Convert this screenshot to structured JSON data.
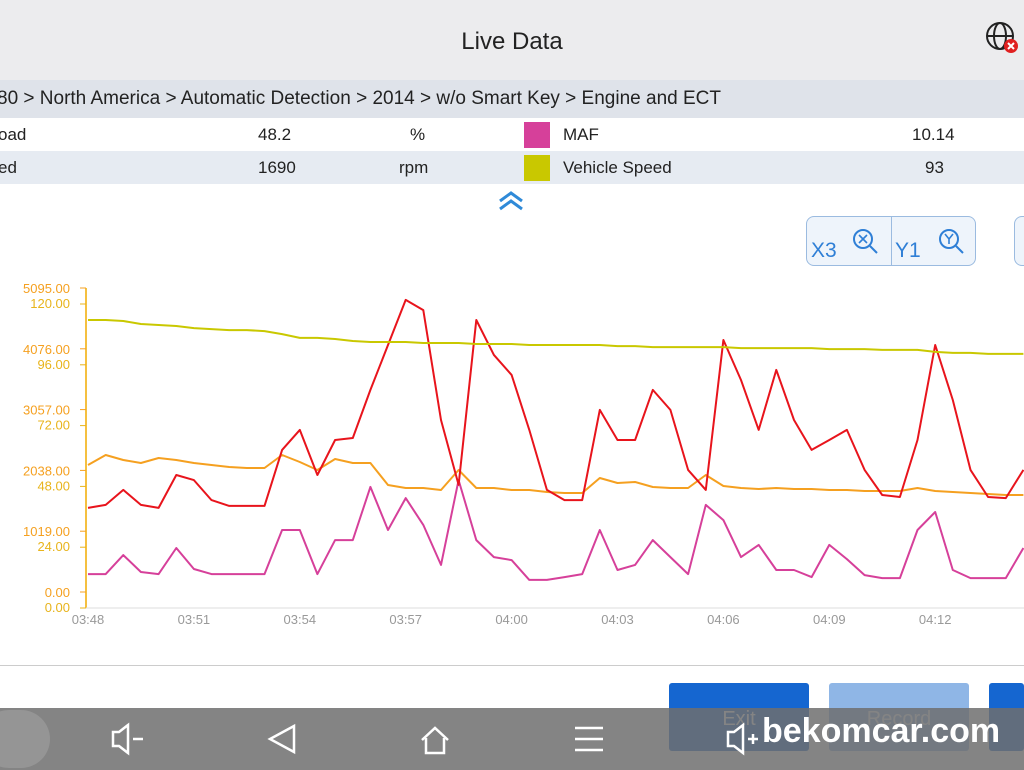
{
  "header": {
    "title": "Live Data"
  },
  "breadcrumb": "80 > North America  > Automatic Detection  > 2014  > w/o Smart Key  > Engine and ECT",
  "table": {
    "rows": [
      {
        "left_name": "oad",
        "left_value": 48.2,
        "left_unit": "%",
        "right_color": "#d6409a",
        "right_name": "MAF",
        "right_value": 10.14
      },
      {
        "left_name": "ed",
        "left_value": 1690,
        "left_unit": "rpm",
        "right_color": "#c9c800",
        "right_name": "Vehicle Speed",
        "right_value": 93
      }
    ]
  },
  "zoom": {
    "x": "X3",
    "y": "Y1"
  },
  "buttons": [
    "Exit",
    "Record"
  ],
  "watermark": "bekomcar.com",
  "chart_data": {
    "type": "line",
    "categories": [
      "03:48",
      null,
      null,
      null,
      null,
      null,
      "03:51",
      null,
      null,
      null,
      null,
      null,
      "03:54",
      null,
      null,
      null,
      null,
      null,
      "03:57",
      null,
      null,
      null,
      null,
      null,
      "04:00",
      null,
      null,
      null,
      null,
      null,
      "04:03",
      null,
      null,
      null,
      null,
      null,
      "04:06",
      null,
      null,
      null,
      null,
      null,
      "04:09",
      null,
      null,
      null,
      null,
      null,
      "04:12",
      null,
      null,
      null,
      null,
      null
    ],
    "ylim": [
      0,
      120
    ],
    "yticks": [
      {
        "value": 0,
        "label": "0.00"
      },
      {
        "value": 24,
        "label": "24.00"
      },
      {
        "value": 48,
        "label": "48.00"
      },
      {
        "value": 72,
        "label": "72.00"
      },
      {
        "value": 96,
        "label": "96.00"
      },
      {
        "value": 120,
        "label": "120.00"
      }
    ],
    "y2lim": [
      0,
      5095
    ],
    "y2ticks": [
      {
        "value": 0,
        "label": "0.00"
      },
      {
        "value": 1019,
        "label": "1019.00"
      },
      {
        "value": 2038,
        "label": "2038.00"
      },
      {
        "value": 3057,
        "label": "3057.00"
      },
      {
        "value": 4076,
        "label": "4076.00"
      },
      {
        "value": 5095,
        "label": "5095.00"
      }
    ],
    "series": [
      {
        "color": "#d6409a",
        "values": [
          13.4,
          13.4,
          20.9,
          14.2,
          13.4,
          23.7,
          15.4,
          13.4,
          13.4,
          13.4,
          13.4,
          30.8,
          30.8,
          13.4,
          26.8,
          26.8,
          47.8,
          30.8,
          43.4,
          32.8,
          17,
          50.5,
          26.8,
          20.1,
          18.9,
          11.1,
          11.1,
          12.2,
          13.4,
          30.8,
          15,
          17,
          26.8,
          20.1,
          13.4,
          40.7,
          34.7,
          20.1,
          24.9,
          15,
          15,
          12.2,
          24.9,
          19.3,
          13,
          11.8,
          11.8,
          30.8,
          37.9,
          15,
          11.8,
          11.8,
          11.8,
          23.7
        ]
      },
      {
        "color": "#f5a020",
        "axis": "y2",
        "values": [
          2128,
          2296,
          2212,
          2162,
          2246,
          2212,
          2162,
          2128,
          2095,
          2078,
          2078,
          2296,
          2179,
          2045,
          2229,
          2162,
          2162,
          1793,
          1743,
          1743,
          1710,
          2045,
          1743,
          1743,
          1710,
          1710,
          1676,
          1659,
          1659,
          1911,
          1827,
          1843,
          1760,
          1743,
          1743,
          1961,
          1777,
          1743,
          1727,
          1743,
          1727,
          1727,
          1710,
          1710,
          1693,
          1693,
          1693,
          1743,
          1693,
          1676,
          1659,
          1643,
          1626,
          1626
        ]
      },
      {
        "color": "#e8141c",
        "values": [
          39.5,
          40.7,
          46.6,
          40.7,
          39.5,
          52.5,
          50.5,
          42.6,
          40.3,
          40.3,
          40.3,
          62.4,
          70.3,
          52.5,
          66.3,
          67.1,
          86.1,
          103.8,
          121.6,
          117.6,
          74.2,
          48.6,
          113.7,
          99.9,
          92,
          70.3,
          46.6,
          42.6,
          42.6,
          78.2,
          66.3,
          66.3,
          86.1,
          78.2,
          54.5,
          46.6,
          105.8,
          90,
          70.3,
          94,
          74.2,
          62.4,
          66.3,
          70.3,
          54.5,
          44.6,
          43.8,
          66.3,
          103.8,
          82.1,
          54.5,
          43.8,
          43.4,
          54.5
        ]
      },
      {
        "color": "#c9c800",
        "values": [
          113.7,
          113.7,
          113.3,
          112.1,
          111.7,
          111.3,
          110.5,
          110.1,
          109.7,
          109.7,
          109.3,
          108.1,
          106.6,
          106.6,
          106.2,
          105.4,
          105,
          105,
          105,
          104.6,
          104.6,
          104.6,
          104.2,
          104.2,
          104.2,
          103.8,
          103.8,
          103.8,
          103.8,
          103.8,
          103.4,
          103.4,
          103,
          103,
          103,
          103,
          103,
          102.6,
          102.6,
          102.6,
          102.6,
          102.6,
          102.2,
          102.2,
          102.2,
          101.9,
          101.9,
          101.9,
          101.1,
          100.7,
          100.7,
          100.3,
          100.3,
          100.3
        ]
      }
    ]
  }
}
